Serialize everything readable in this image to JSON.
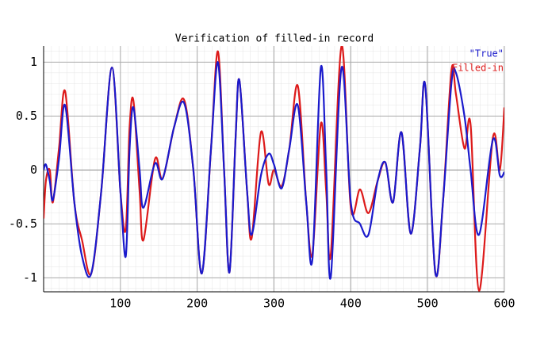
{
  "chart_data": {
    "type": "line",
    "title": "Verification of filled-in record",
    "x": [
      0,
      3,
      8,
      12,
      20,
      28,
      40,
      50,
      62,
      75,
      89,
      100,
      107,
      112,
      117,
      125,
      130,
      145,
      155,
      170,
      183,
      195,
      206,
      218,
      227,
      235,
      242,
      250,
      255,
      265,
      271,
      283,
      293,
      300,
      310,
      320,
      331,
      342,
      350,
      361,
      368,
      374,
      388,
      400,
      412,
      423,
      435,
      445,
      455,
      466,
      478,
      490,
      497,
      510,
      520,
      531,
      537,
      548,
      556,
      567,
      585,
      594,
      600
    ],
    "series": [
      {
        "name": "\"True\"",
        "color": "#1a1acc",
        "values": [
          0.0,
          0.05,
          -0.1,
          -0.28,
          0.1,
          0.6,
          -0.3,
          -0.8,
          -0.96,
          -0.2,
          0.95,
          -0.2,
          -0.8,
          0.2,
          0.58,
          0.0,
          -0.35,
          0.06,
          -0.08,
          0.4,
          0.62,
          0.0,
          -0.96,
          0.2,
          1.0,
          0.0,
          -0.95,
          0.3,
          0.83,
          -0.2,
          -0.6,
          -0.05,
          0.15,
          0.05,
          -0.17,
          0.2,
          0.6,
          -0.3,
          -0.83,
          0.95,
          0.0,
          -0.99,
          0.95,
          -0.3,
          -0.5,
          -0.6,
          -0.1,
          0.07,
          -0.3,
          0.35,
          -0.59,
          0.2,
          0.78,
          -0.95,
          -0.3,
          0.8,
          0.9,
          0.5,
          0.0,
          -0.6,
          0.28,
          -0.05,
          -0.02
        ]
      },
      {
        "name": "Filled-in",
        "color": "#dd1a1a",
        "values": [
          -0.45,
          -0.1,
          0.0,
          -0.3,
          0.2,
          0.73,
          -0.3,
          -0.65,
          -0.96,
          -0.2,
          0.95,
          -0.2,
          -0.55,
          0.4,
          0.64,
          -0.2,
          -0.65,
          0.1,
          -0.08,
          0.4,
          0.65,
          0.0,
          -0.96,
          0.2,
          1.1,
          0.0,
          -0.95,
          0.3,
          0.83,
          -0.2,
          -0.63,
          0.35,
          -0.13,
          0.0,
          -0.15,
          0.2,
          0.78,
          -0.3,
          -0.78,
          0.43,
          -0.2,
          -0.78,
          1.15,
          -0.35,
          -0.18,
          -0.4,
          -0.1,
          0.07,
          -0.3,
          0.35,
          -0.59,
          0.2,
          0.78,
          -0.95,
          -0.3,
          0.92,
          0.7,
          0.2,
          0.42,
          -1.12,
          0.3,
          0.0,
          0.58
        ]
      }
    ],
    "xlim": [
      0,
      600
    ],
    "ylim": [
      -1.13,
      1.15
    ],
    "xticks": [
      100,
      200,
      300,
      400,
      500,
      600
    ],
    "yticks": [
      -1,
      -0.5,
      0,
      0.5,
      1
    ],
    "grid": true
  }
}
